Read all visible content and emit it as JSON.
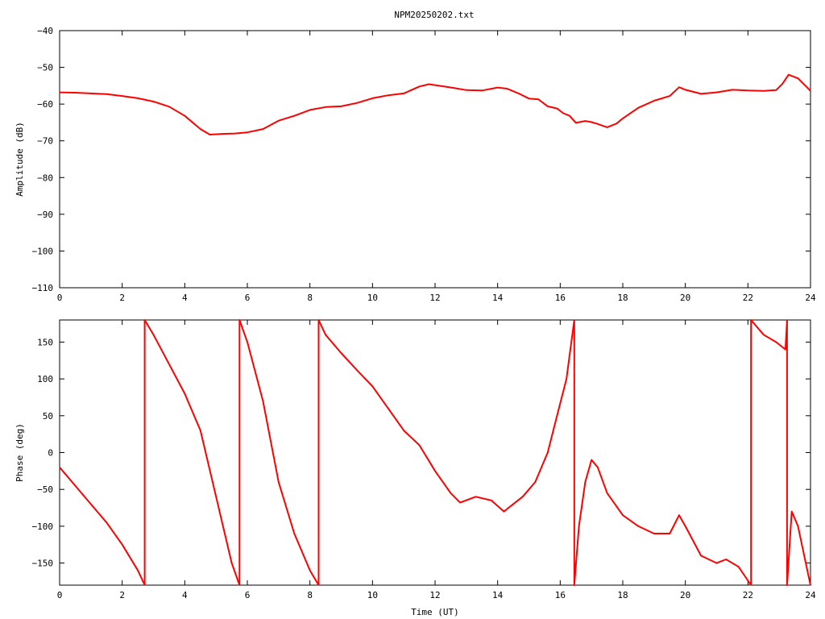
{
  "title": "NPM20250202.txt",
  "colors": {
    "series": "#ff0000",
    "axis": "#000000",
    "background": "#ffffff"
  },
  "chart_data": [
    {
      "type": "line",
      "title": "NPM20250202.txt",
      "xlabel": "",
      "ylabel": "Amplitude (dB)",
      "xlim": [
        0,
        24
      ],
      "ylim": [
        -110,
        -40
      ],
      "xticks": [
        "0",
        "2",
        "4",
        "6",
        "8",
        "10",
        "12",
        "14",
        "16",
        "18",
        "20",
        "22",
        "24"
      ],
      "yticks": [
        "-110",
        "-100",
        "-90",
        "-80",
        "-70",
        "-60",
        "-50",
        "-40"
      ],
      "grid": false,
      "series": [
        {
          "x": [
            0,
            0.5,
            1.0,
            1.5,
            2.0,
            2.5,
            3.0,
            3.5,
            4.0,
            4.5,
            4.8,
            5.2,
            5.6,
            6.0,
            6.5,
            7.0,
            7.5,
            8.0,
            8.5,
            9.0,
            9.5,
            10.0,
            10.5,
            11.0,
            11.5,
            11.8,
            12.2,
            12.6,
            13.0,
            13.5,
            14.0,
            14.3,
            14.7,
            15.0,
            15.3,
            15.6,
            15.9,
            16.1,
            16.3,
            16.5,
            16.8,
            17.0,
            17.2,
            17.5,
            17.8,
            18.0,
            18.5,
            19.0,
            19.5,
            19.8,
            20.0,
            20.5,
            21.0,
            21.5,
            22.0,
            22.5,
            22.9,
            23.1,
            23.3,
            23.6,
            24.0
          ],
          "y": [
            -56.8,
            -56.9,
            -57.1,
            -57.3,
            -57.8,
            -58.4,
            -59.3,
            -60.7,
            -63.2,
            -66.8,
            -68.3,
            -68.1,
            -68.0,
            -67.7,
            -66.8,
            -64.5,
            -63.2,
            -61.6,
            -60.8,
            -60.6,
            -59.7,
            -58.4,
            -57.6,
            -57.1,
            -55.2,
            -54.6,
            -55.1,
            -55.6,
            -56.2,
            -56.3,
            -55.5,
            -55.8,
            -57.2,
            -58.5,
            -58.7,
            -60.6,
            -61.2,
            -62.5,
            -63.2,
            -65.1,
            -64.6,
            -64.9,
            -65.4,
            -66.3,
            -65.3,
            -63.9,
            -61.0,
            -59.1,
            -57.8,
            -55.4,
            -56.1,
            -57.2,
            -56.8,
            -56.1,
            -56.3,
            -56.4,
            -56.2,
            -54.5,
            -52.0,
            -53.0,
            -56.4
          ]
        }
      ]
    },
    {
      "type": "line",
      "title": "",
      "xlabel": "Time (UT)",
      "ylabel": "Phase (deg)",
      "xlim": [
        0,
        24
      ],
      "ylim": [
        -180,
        180
      ],
      "xticks": [
        "0",
        "2",
        "4",
        "6",
        "8",
        "10",
        "12",
        "14",
        "16",
        "18",
        "20",
        "22",
        "24"
      ],
      "yticks": [
        "-150",
        "-100",
        "-50",
        "0",
        "50",
        "100",
        "150"
      ],
      "grid": false,
      "series": [
        {
          "segments": [
            {
              "x": [
                0,
                0.5,
                1.0,
                1.5,
                2.0,
                2.5,
                2.72
              ],
              "y": [
                -20,
                -45,
                -70,
                -95,
                -125,
                -160,
                -180
              ]
            },
            {
              "x": [
                2.72,
                2.72,
                3.0,
                3.5,
                4.0,
                4.5,
                5.0,
                5.5,
                5.75
              ],
              "y": [
                -180,
                180,
                160,
                120,
                80,
                30,
                -60,
                -150,
                -180
              ]
            },
            {
              "x": [
                5.75,
                5.75,
                6.0,
                6.5,
                7.0,
                7.5,
                8.0,
                8.28
              ],
              "y": [
                -180,
                180,
                150,
                70,
                -40,
                -110,
                -160,
                -180
              ]
            },
            {
              "x": [
                8.28,
                8.28,
                8.5,
                9.0,
                9.5,
                10.0,
                10.5,
                11.0,
                11.5,
                12.0,
                12.5,
                12.8,
                13.3,
                13.8,
                14.2,
                14.8,
                15.2,
                15.6,
                15.9,
                16.2,
                16.45
              ],
              "y": [
                -180,
                180,
                160,
                135,
                112,
                90,
                60,
                30,
                10,
                -25,
                -55,
                -68,
                -60,
                -65,
                -80,
                -60,
                -40,
                0,
                50,
                100,
                180
              ]
            },
            {
              "x": [
                16.45,
                16.45,
                16.6,
                16.8,
                17.0,
                17.2,
                17.5,
                18.0,
                18.5,
                19.0,
                19.5,
                19.8,
                20.0,
                20.5,
                21.0,
                21.3,
                21.7,
                22.1
              ],
              "y": [
                180,
                -180,
                -100,
                -40,
                -10,
                -20,
                -55,
                -85,
                -100,
                -110,
                -110,
                -85,
                -100,
                -140,
                -150,
                -145,
                -155,
                -180
              ]
            },
            {
              "x": [
                22.1,
                22.1,
                22.5,
                22.9,
                23.2,
                23.25
              ],
              "y": [
                -180,
                180,
                160,
                150,
                140,
                180
              ]
            },
            {
              "x": [
                23.25,
                23.25,
                23.4,
                23.6,
                23.8,
                24.0
              ],
              "y": [
                180,
                -180,
                -80,
                -100,
                -140,
                -180
              ]
            }
          ]
        }
      ]
    }
  ]
}
